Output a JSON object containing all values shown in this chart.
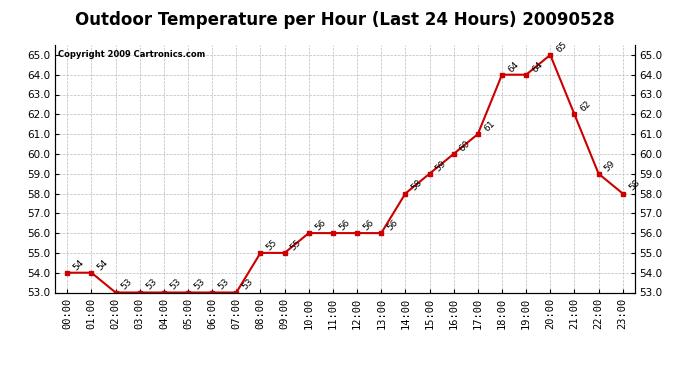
{
  "title": "Outdoor Temperature per Hour (Last 24 Hours) 20090528",
  "copyright": "Copyright 2009 Cartronics.com",
  "hours": [
    "00:00",
    "01:00",
    "02:00",
    "03:00",
    "04:00",
    "05:00",
    "06:00",
    "07:00",
    "08:00",
    "09:00",
    "10:00",
    "11:00",
    "12:00",
    "13:00",
    "14:00",
    "15:00",
    "16:00",
    "17:00",
    "18:00",
    "19:00",
    "20:00",
    "21:00",
    "22:00",
    "23:00"
  ],
  "values": [
    54,
    54,
    53,
    53,
    53,
    53,
    53,
    53,
    55,
    55,
    56,
    56,
    56,
    56,
    58,
    59,
    60,
    61,
    64,
    64,
    65,
    62,
    59,
    58
  ],
  "line_color": "#cc0000",
  "marker": "s",
  "marker_color": "#cc0000",
  "marker_size": 3,
  "ylim": [
    53.0,
    65.5
  ],
  "yticks": [
    53.0,
    54.0,
    55.0,
    56.0,
    57.0,
    58.0,
    59.0,
    60.0,
    61.0,
    62.0,
    63.0,
    64.0,
    65.0
  ],
  "grid_color": "#bbbbbb",
  "bg_color": "#ffffff",
  "title_fontsize": 12,
  "annotation_fontsize": 6.5,
  "tick_fontsize": 7.5
}
